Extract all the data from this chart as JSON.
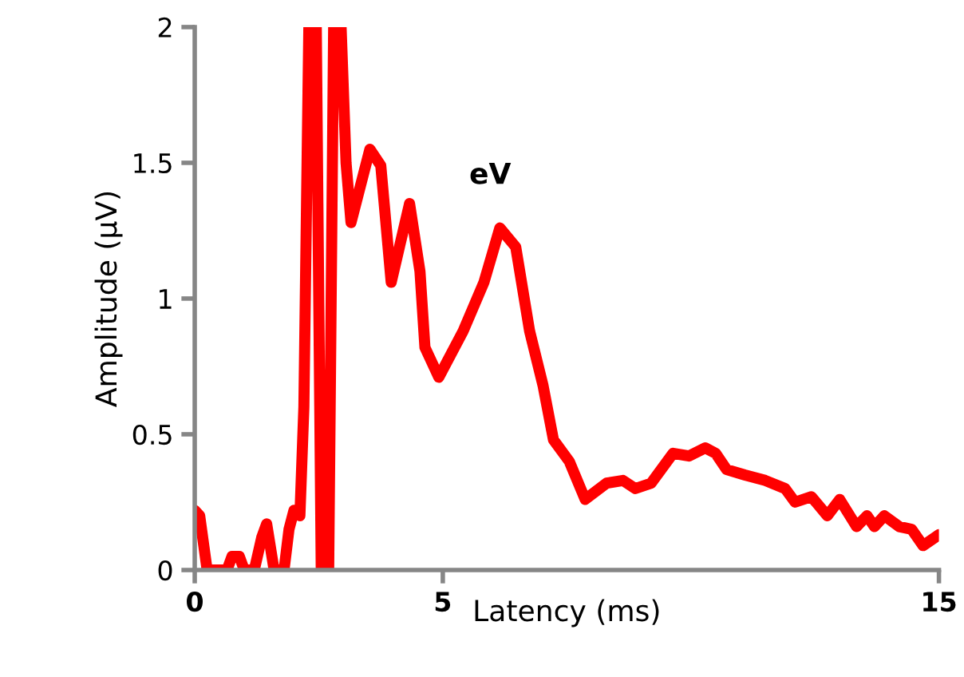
{
  "chart_data": {
    "type": "line",
    "xlabel": "Latency (ms)",
    "ylabel": "Amplitude (µV)",
    "x": [
      0.0,
      0.1,
      0.25,
      0.65,
      0.75,
      0.9,
      1.0,
      1.2,
      1.35,
      1.45,
      1.6,
      1.8,
      1.9,
      2.0,
      2.12,
      2.2,
      2.3,
      2.45,
      2.55,
      2.7,
      2.8,
      2.95,
      3.05,
      3.15,
      3.53,
      3.75,
      3.96,
      4.33,
      4.54,
      4.64,
      4.92,
      5.41,
      5.83,
      6.15,
      6.47,
      6.75,
      7.02,
      7.23,
      7.55,
      7.87,
      8.3,
      8.63,
      8.88,
      9.2,
      9.64,
      9.96,
      10.29,
      10.5,
      10.72,
      11.09,
      11.5,
      11.9,
      12.1,
      12.43,
      12.75,
      13.0,
      13.34,
      13.55,
      13.7,
      13.9,
      14.2,
      14.45,
      14.68,
      15.0
    ],
    "series": [
      {
        "color": "#ff0000",
        "values": [
          0.22,
          0.2,
          0,
          0,
          0.05,
          0.05,
          0,
          0,
          0.12,
          0.17,
          0,
          0,
          0.15,
          0.22,
          0.2,
          0.6,
          2,
          2,
          0,
          0,
          2,
          2,
          1.5,
          1.28,
          1.55,
          1.49,
          1.06,
          1.35,
          1.1,
          0.82,
          0.71,
          0.88,
          1.06,
          1.26,
          1.19,
          0.88,
          0.68,
          0.48,
          0.4,
          0.26,
          0.32,
          0.33,
          0.3,
          0.32,
          0.43,
          0.42,
          0.45,
          0.43,
          0.37,
          0.35,
          0.33,
          0.3,
          0.25,
          0.27,
          0.2,
          0.26,
          0.16,
          0.2,
          0.16,
          0.2,
          0.16,
          0.15,
          0.09,
          0.13
        ]
      }
    ],
    "xlim": [
      0,
      15
    ],
    "xticks": [
      0,
      5,
      15
    ],
    "ylim": [
      0,
      2
    ],
    "yticks": [
      0,
      0.5,
      1,
      1.5,
      2
    ],
    "annotations": [
      "eV"
    ],
    "grid": false,
    "marker": "none",
    "line_style": "solid"
  }
}
